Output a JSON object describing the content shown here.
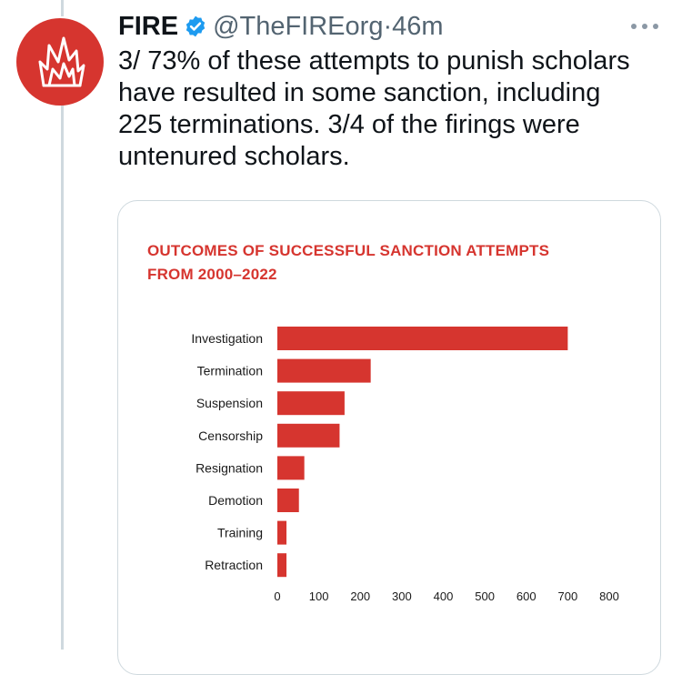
{
  "tweet": {
    "author_name": "FIRE",
    "handle": "@TheFIREorg",
    "separator": "·",
    "time": "46m",
    "text": "3/ 73% of these attempts to punish scholars have resulted in some sanction, including 225 terminations. 3/4 of the firings were untenured scholars.",
    "avatar_icon": "fire-flame-logo-icon",
    "verified_icon": "verified-badge-icon",
    "more_icon": "more-options-icon"
  },
  "colors": {
    "brand_red": "#d6352f",
    "verified_blue": "#1d9bf0",
    "secondary_text": "#536471"
  },
  "chart_data": {
    "type": "bar",
    "orientation": "horizontal",
    "title_lines": [
      "OUTCOMES OF SUCCESSFUL SANCTION ATTEMPTS",
      "FROM 2000–2022"
    ],
    "categories": [
      "Investigation",
      "Termination",
      "Suspension",
      "Censorship",
      "Resignation",
      "Demotion",
      "Training",
      "Retraction"
    ],
    "values": [
      700,
      225,
      162,
      150,
      65,
      52,
      22,
      22
    ],
    "xlim": [
      0,
      800
    ],
    "xticks": [
      0,
      100,
      200,
      300,
      400,
      500,
      600,
      700,
      800
    ],
    "bar_color": "#d6352f",
    "grid": false,
    "legend": "none"
  }
}
